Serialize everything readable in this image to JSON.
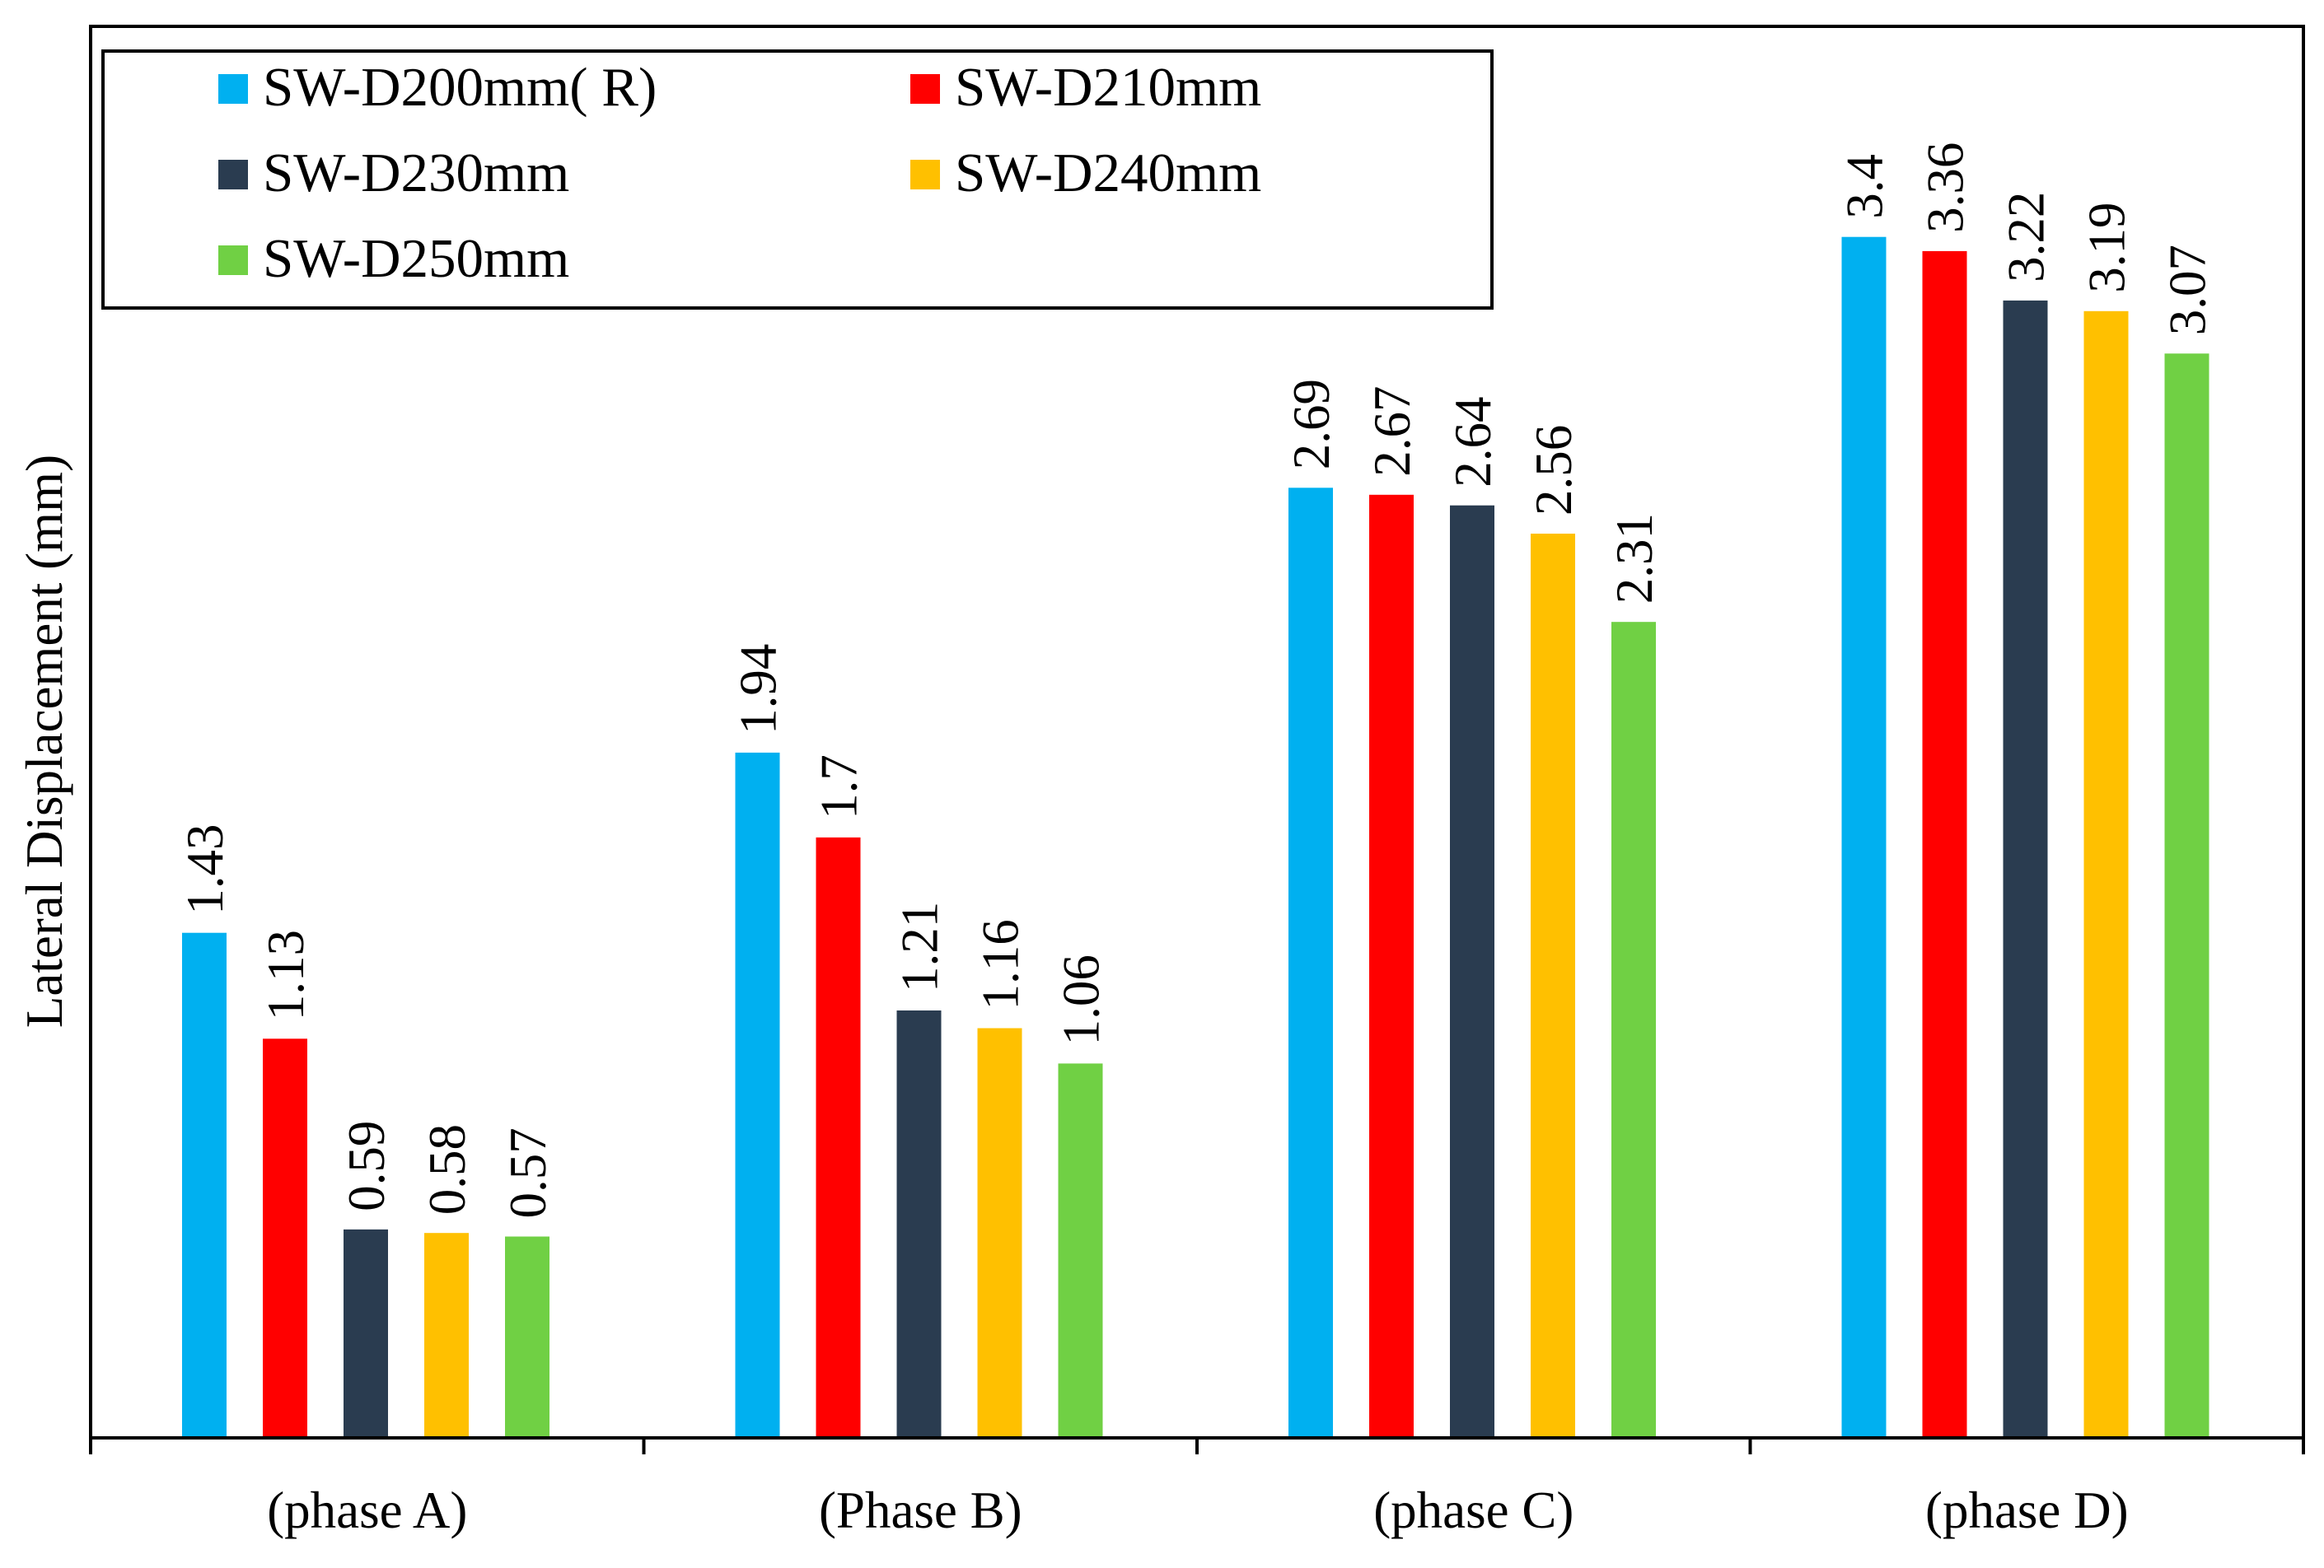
{
  "chart_data": {
    "type": "bar",
    "categories": [
      "(phase A)",
      "(Phase B)",
      "(phase C)",
      "(phase D)"
    ],
    "series": [
      {
        "name": "SW-D200mm( R)",
        "color": "#00B0F0",
        "values": [
          1.43,
          1.94,
          2.69,
          3.4
        ]
      },
      {
        "name": "SW-D210mm",
        "color": "#FF0000",
        "values": [
          1.13,
          1.7,
          2.67,
          3.36
        ]
      },
      {
        "name": "SW-D230mm",
        "color": "#2A3C50",
        "values": [
          0.59,
          1.21,
          2.64,
          3.22
        ]
      },
      {
        "name": "SW-D240mm",
        "color": "#FFC000",
        "values": [
          0.58,
          1.16,
          2.56,
          3.19
        ]
      },
      {
        "name": "SW-D250mm",
        "color": "#70D044",
        "values": [
          0.57,
          1.06,
          2.31,
          3.07
        ]
      }
    ],
    "data_labels": [
      [
        "1.43",
        "1.94",
        "2.69",
        "3.4"
      ],
      [
        "1.13",
        "1.7",
        "2.67",
        "3.36"
      ],
      [
        "0.59",
        "1.21",
        "2.64",
        "3.22"
      ],
      [
        "0.58",
        "1.16",
        "2.56",
        "3.19"
      ],
      [
        "0.57",
        "1.06",
        "2.31",
        "3.07"
      ]
    ],
    "title": "",
    "xlabel": "",
    "ylabel": "Lateral Displacement (mm)",
    "ylim": [
      0,
      4
    ],
    "grid": false,
    "legend_position": "top-left"
  }
}
